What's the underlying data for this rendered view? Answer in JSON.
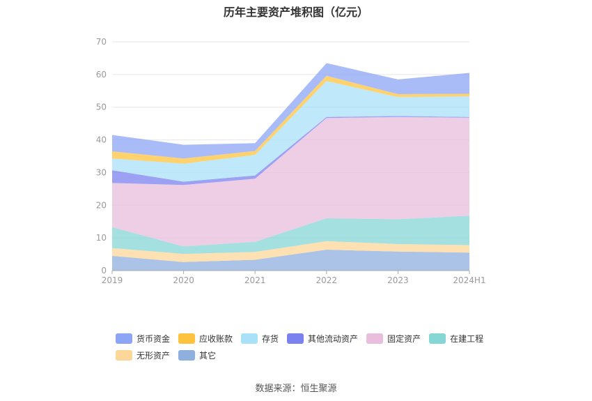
{
  "chart_data": {
    "type": "area",
    "stacked": true,
    "title": "历年主要资产堆积图（亿元）",
    "categories": [
      "2019",
      "2020",
      "2021",
      "2022",
      "2023",
      "2024H1"
    ],
    "ylim": [
      0,
      70
    ],
    "yticks": [
      0,
      10,
      20,
      30,
      40,
      50,
      60,
      70
    ],
    "grid": true,
    "legend_position": "bottom",
    "series": [
      {
        "name": "其它",
        "color": "#8fafdd",
        "values": [
          4.5,
          2.6,
          3.3,
          6.4,
          5.8,
          5.5
        ]
      },
      {
        "name": "无形资产",
        "color": "#fdd79a",
        "values": [
          2.4,
          2.5,
          2.4,
          2.6,
          2.3,
          2.3
        ]
      },
      {
        "name": "在建工程",
        "color": "#86d6d6",
        "values": [
          6.4,
          2.3,
          3.1,
          7.0,
          7.6,
          9.0
        ]
      },
      {
        "name": "固定资产",
        "color": "#e8bedc",
        "values": [
          13.5,
          18.8,
          19.3,
          30.7,
          31.3,
          30.0
        ]
      },
      {
        "name": "其他流动资产",
        "color": "#7b82f0",
        "values": [
          3.9,
          1.0,
          1.0,
          0.3,
          0.3,
          0.2
        ]
      },
      {
        "name": "存货",
        "color": "#a9e1f9",
        "values": [
          3.6,
          5.5,
          6.3,
          11.0,
          5.8,
          6.3
        ]
      },
      {
        "name": "应收账款",
        "color": "#fdc33e",
        "values": [
          2.2,
          1.6,
          1.2,
          1.6,
          0.9,
          0.8
        ]
      },
      {
        "name": "货币资金",
        "color": "#8ca6f5",
        "values": [
          5.0,
          4.2,
          2.4,
          3.9,
          4.5,
          6.4
        ]
      }
    ]
  },
  "legend": {
    "row1": [
      "货币资金",
      "应收账款",
      "存货",
      "其他流动资产",
      "固定资产",
      "在建工程"
    ],
    "row2": [
      "无形资产",
      "其它"
    ]
  },
  "source": "数据来源：恒生聚源"
}
